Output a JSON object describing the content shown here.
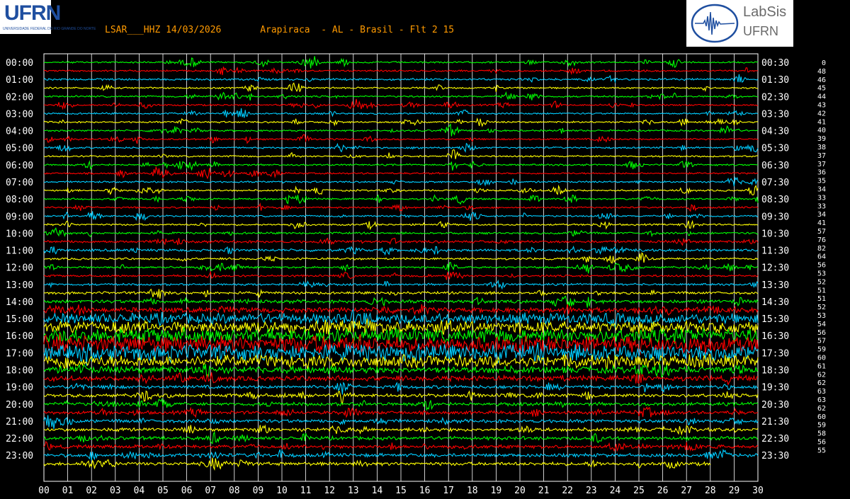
{
  "header": {
    "station": "LSAR___HHZ",
    "date": "14/03/2026",
    "location": "Arapiraca  - AL - Brasil - Flt 2 15"
  },
  "logos": {
    "left": {
      "big_text": "UFRN",
      "small_text": "UNIVERSIDADE FEDERAL DO RIO GRANDE DO NORTE"
    },
    "right": {
      "name": "LabSis",
      "org": "UFRN"
    }
  },
  "chart_data": {
    "type": "helicorder",
    "x_unit": "minutes",
    "x_ticks": [
      "00",
      "01",
      "02",
      "03",
      "04",
      "05",
      "06",
      "07",
      "08",
      "09",
      "10",
      "11",
      "12",
      "13",
      "14",
      "15",
      "16",
      "17",
      "18",
      "19",
      "20",
      "21",
      "22",
      "23",
      "24",
      "25",
      "26",
      "27",
      "28",
      "29",
      "30"
    ],
    "left_labels": [
      "00:00",
      "01:00",
      "02:00",
      "03:00",
      "04:00",
      "05:00",
      "06:00",
      "07:00",
      "08:00",
      "09:00",
      "10:00",
      "11:00",
      "12:00",
      "13:00",
      "14:00",
      "15:00",
      "16:00",
      "17:00",
      "18:00",
      "19:00",
      "20:00",
      "21:00",
      "22:00",
      "23:00"
    ],
    "right_labels": [
      "00:30",
      "01:30",
      "02:30",
      "03:30",
      "04:30",
      "05:30",
      "06:30",
      "07:30",
      "08:30",
      "09:30",
      "10:30",
      "11:30",
      "12:30",
      "13:30",
      "14:30",
      "15:30",
      "16:30",
      "17:30",
      "18:30",
      "19:30",
      "20:30",
      "21:30",
      "22:30",
      "23:30"
    ],
    "scale_values": [
      0,
      48,
      46,
      45,
      44,
      43,
      42,
      41,
      40,
      39,
      38,
      37,
      37,
      36,
      35,
      34,
      33,
      33,
      34,
      41,
      57,
      76,
      82,
      64,
      56,
      53,
      52,
      51,
      51,
      52,
      53,
      54,
      56,
      57,
      59,
      60,
      61,
      62,
      62,
      63,
      63,
      62,
      60,
      59,
      58,
      56,
      55
    ],
    "trace_colors": [
      "#00ff00",
      "#ff0000",
      "#00ccff",
      "#ffff00"
    ],
    "trace_amplitude": [
      1,
      1,
      1.2,
      1,
      1,
      1,
      1,
      1,
      1,
      1,
      1,
      1,
      1,
      1,
      1,
      1,
      1,
      1,
      1,
      1,
      1.2,
      1.5,
      1.5,
      1.2,
      1.2,
      1.2,
      1.2,
      1.5,
      2,
      3,
      6,
      7,
      8,
      9,
      9,
      7,
      4,
      3,
      2,
      2,
      2,
      2,
      2,
      2,
      2,
      2,
      2,
      2,
      2,
      2,
      2.5,
      2.5,
      2.5,
      2.5,
      2.5,
      2.5,
      2.5,
      2.5,
      2.5,
      2.5,
      2.5,
      2.5,
      2.5,
      2.5,
      2.5,
      2.5,
      2.5,
      2.5,
      2.5,
      2.5,
      2.5,
      2.5,
      2.5,
      2.5,
      2.5,
      2.5,
      2.5,
      2.5,
      2.5,
      2.5,
      2.5,
      2.5,
      2.5,
      2.5,
      2.5,
      2.5,
      2.5,
      2.5,
      2.5,
      2.5,
      2.5,
      2.5,
      2.5,
      2.5,
      1,
      1
    ]
  }
}
